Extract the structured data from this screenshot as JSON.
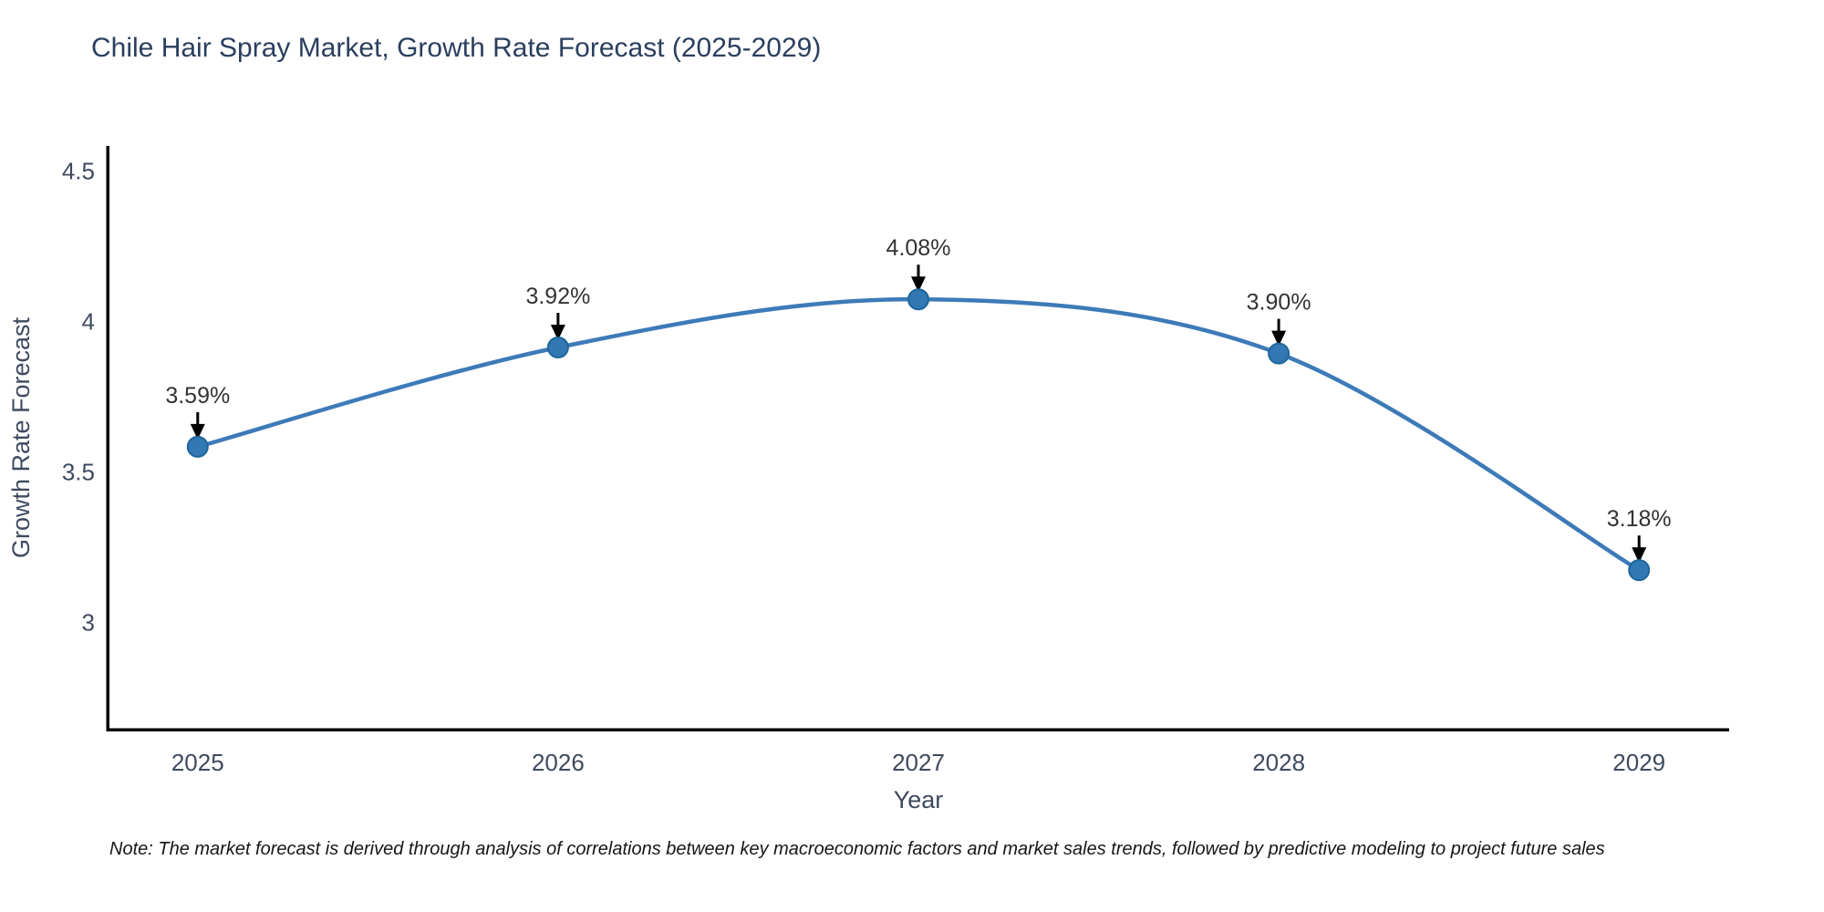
{
  "chart_data": {
    "type": "line",
    "title": "Chile Hair Spray Market, Growth Rate Forecast (2025-2029)",
    "xlabel": "Year",
    "ylabel": "Growth Rate Forecast",
    "x": [
      2025,
      2026,
      2027,
      2028,
      2029
    ],
    "series": [
      {
        "name": "Growth Rate Forecast",
        "values": [
          3.59,
          3.92,
          4.08,
          3.9,
          3.18
        ]
      }
    ],
    "point_labels": [
      "3.59%",
      "3.92%",
      "4.08%",
      "3.90%",
      "3.18%"
    ],
    "xticks": [
      "2025",
      "2026",
      "2027",
      "2028",
      "2029"
    ],
    "yticks": [
      3,
      3.5,
      4,
      4.5
    ],
    "ytick_labels": [
      "3",
      "3.5",
      "4",
      "4.5"
    ],
    "xlim": [
      2024.75,
      2029.25
    ],
    "ylim": [
      2.65,
      4.59
    ],
    "grid": false,
    "legend_position": "none",
    "line_shape": "spline",
    "colors": {
      "line": "#3d7ab8",
      "marker_fill": "#3178b5",
      "marker_edge": "#1f6699",
      "arrow": "#000000",
      "axis_line": "#000000",
      "title_text": "#2a3f5f",
      "tick_text": "#3e4a5e",
      "annotation_text": "#333333",
      "note_text": "#161616",
      "background": "#ffffff"
    }
  },
  "note": {
    "text": "Note: The market forecast is derived through analysis of correlations between key macroeconomic factors and market sales trends, followed by predictive modeling to project future sales"
  }
}
